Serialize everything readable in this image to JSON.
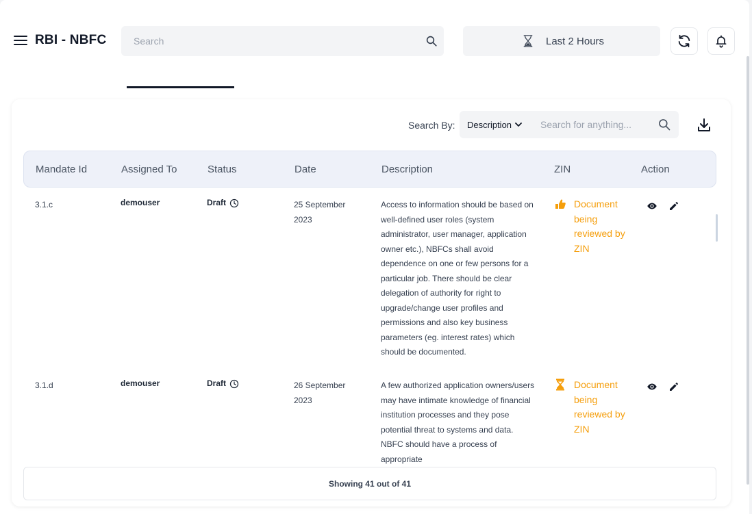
{
  "header": {
    "title": "RBI - NBFC",
    "search_placeholder": "Search",
    "time_range": "Last 2 Hours"
  },
  "toolbar": {
    "search_by_label": "Search By:",
    "search_by_value": "Description",
    "search_placeholder": "Search for anything..."
  },
  "table": {
    "columns": [
      "Mandate Id",
      "Assigned To",
      "Status",
      "Date",
      "Description",
      "ZIN",
      "Action"
    ],
    "rows": [
      {
        "mandate_id": "3.1.c",
        "assigned_to": "demouser",
        "status": "Draft",
        "date_line1": "25 September",
        "date_line2": "2023",
        "description": "Access to information should be based on well-defined user roles (system administrator, user manager, application owner etc.), NBFCs shall avoid dependence on one or few persons for a particular job. There should be clear delegation of authority for right to upgrade/change user profiles and permissions and also key business parameters (eg. interest rates) which should be documented.",
        "zin_status": "Document being reviewed by ZIN",
        "zin_icon": "thumbs-up-icon"
      },
      {
        "mandate_id": "3.1.d",
        "assigned_to": "demouser",
        "status": "Draft",
        "date_line1": "26 September",
        "date_line2": "2023",
        "description": "A few authorized application owners/users may have intimate knowledge of financial institution processes and they pose potential threat to systems and data. NBFC should have a process of appropriate",
        "zin_status": "Document being reviewed by ZIN",
        "zin_icon": "hourglass-icon"
      }
    ]
  },
  "footer": {
    "showing_text": "Showing 41 out of 41"
  },
  "colors": {
    "accent_warning": "#f59e0b",
    "header_bg": "#eef1f9",
    "input_bg": "#f3f4f6"
  }
}
